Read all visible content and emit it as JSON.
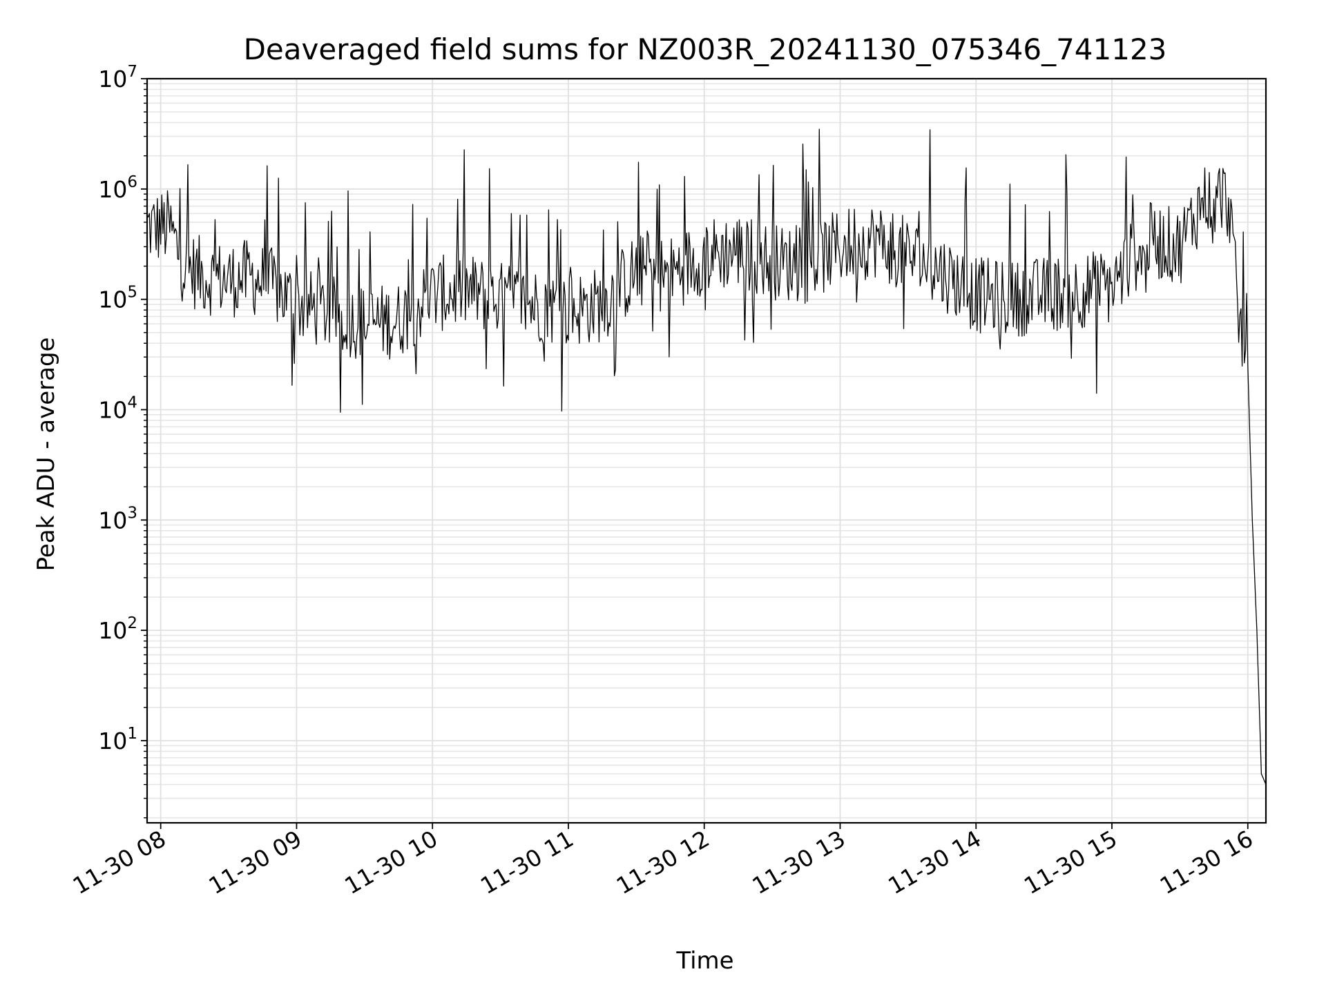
{
  "chart_data": {
    "type": "line",
    "title": "Deaveraged field sums for NZ003R_20241130_075346_741123",
    "xlabel": "Time",
    "ylabel": "Peak ADU - average",
    "yscale": "log",
    "ylim": [
      1.8,
      10000000
    ],
    "xlim": [
      "2024-11-30 07:54",
      "2024-11-30 16:08"
    ],
    "grid": true,
    "line_color": "#000000",
    "x_ticks": [
      "11-30 08",
      "11-30 09",
      "11-30 10",
      "11-30 11",
      "11-30 12",
      "11-30 13",
      "11-30 14",
      "11-30 15",
      "11-30 16"
    ],
    "x_tick_times": [
      "2024-11-30 08:00",
      "2024-11-30 09:00",
      "2024-11-30 10:00",
      "2024-11-30 11:00",
      "2024-11-30 12:00",
      "2024-11-30 13:00",
      "2024-11-30 14:00",
      "2024-11-30 15:00",
      "2024-11-30 16:00"
    ],
    "y_ticks": [
      {
        "value": 10,
        "base": "10",
        "exp": "1"
      },
      {
        "value": 100,
        "base": "10",
        "exp": "2"
      },
      {
        "value": 1000,
        "base": "10",
        "exp": "3"
      },
      {
        "value": 10000,
        "base": "10",
        "exp": "4"
      },
      {
        "value": 100000,
        "base": "10",
        "exp": "5"
      },
      {
        "value": 1000000,
        "base": "10",
        "exp": "6"
      },
      {
        "value": 10000000,
        "base": "10",
        "exp": "7"
      }
    ],
    "series": [
      {
        "x": [
          "2024-11-30 07:54",
          "2024-11-30 08:00",
          "2024-11-30 08:04",
          "2024-11-30 08:10",
          "2024-11-30 08:20",
          "2024-11-30 08:30",
          "2024-11-30 08:40",
          "2024-11-30 08:50",
          "2024-11-30 09:00",
          "2024-11-30 09:15",
          "2024-11-30 09:30",
          "2024-11-30 09:45",
          "2024-11-30 10:00",
          "2024-11-30 10:15",
          "2024-11-30 10:30",
          "2024-11-30 10:45",
          "2024-11-30 11:00",
          "2024-11-30 11:15",
          "2024-11-30 11:30",
          "2024-11-30 11:45",
          "2024-11-30 12:00",
          "2024-11-30 12:15",
          "2024-11-30 12:30",
          "2024-11-30 12:45",
          "2024-11-30 13:00",
          "2024-11-30 13:15",
          "2024-11-30 13:30",
          "2024-11-30 13:45",
          "2024-11-30 14:00",
          "2024-11-30 14:15",
          "2024-11-30 14:30",
          "2024-11-30 14:45",
          "2024-11-30 15:00",
          "2024-11-30 15:15",
          "2024-11-30 15:30",
          "2024-11-30 15:40",
          "2024-11-30 15:48",
          "2024-11-30 15:52",
          "2024-11-30 15:56",
          "2024-11-30 15:58",
          "2024-11-30 16:00",
          "2024-11-30 16:02",
          "2024-11-30 16:04",
          "2024-11-30 16:06",
          "2024-11-30 16:08"
        ],
        "y": [
          450000,
          450000,
          450000,
          200000,
          160000,
          150000,
          160000,
          130000,
          90000,
          75000,
          60000,
          65000,
          110000,
          120000,
          100000,
          90000,
          80000,
          90000,
          180000,
          170000,
          250000,
          280000,
          220000,
          200000,
          300000,
          350000,
          250000,
          180000,
          110000,
          100000,
          110000,
          120000,
          130000,
          350000,
          300000,
          800000,
          900000,
          700000,
          60000,
          45000,
          25000,
          1000,
          100,
          5,
          4
        ]
      }
    ]
  }
}
